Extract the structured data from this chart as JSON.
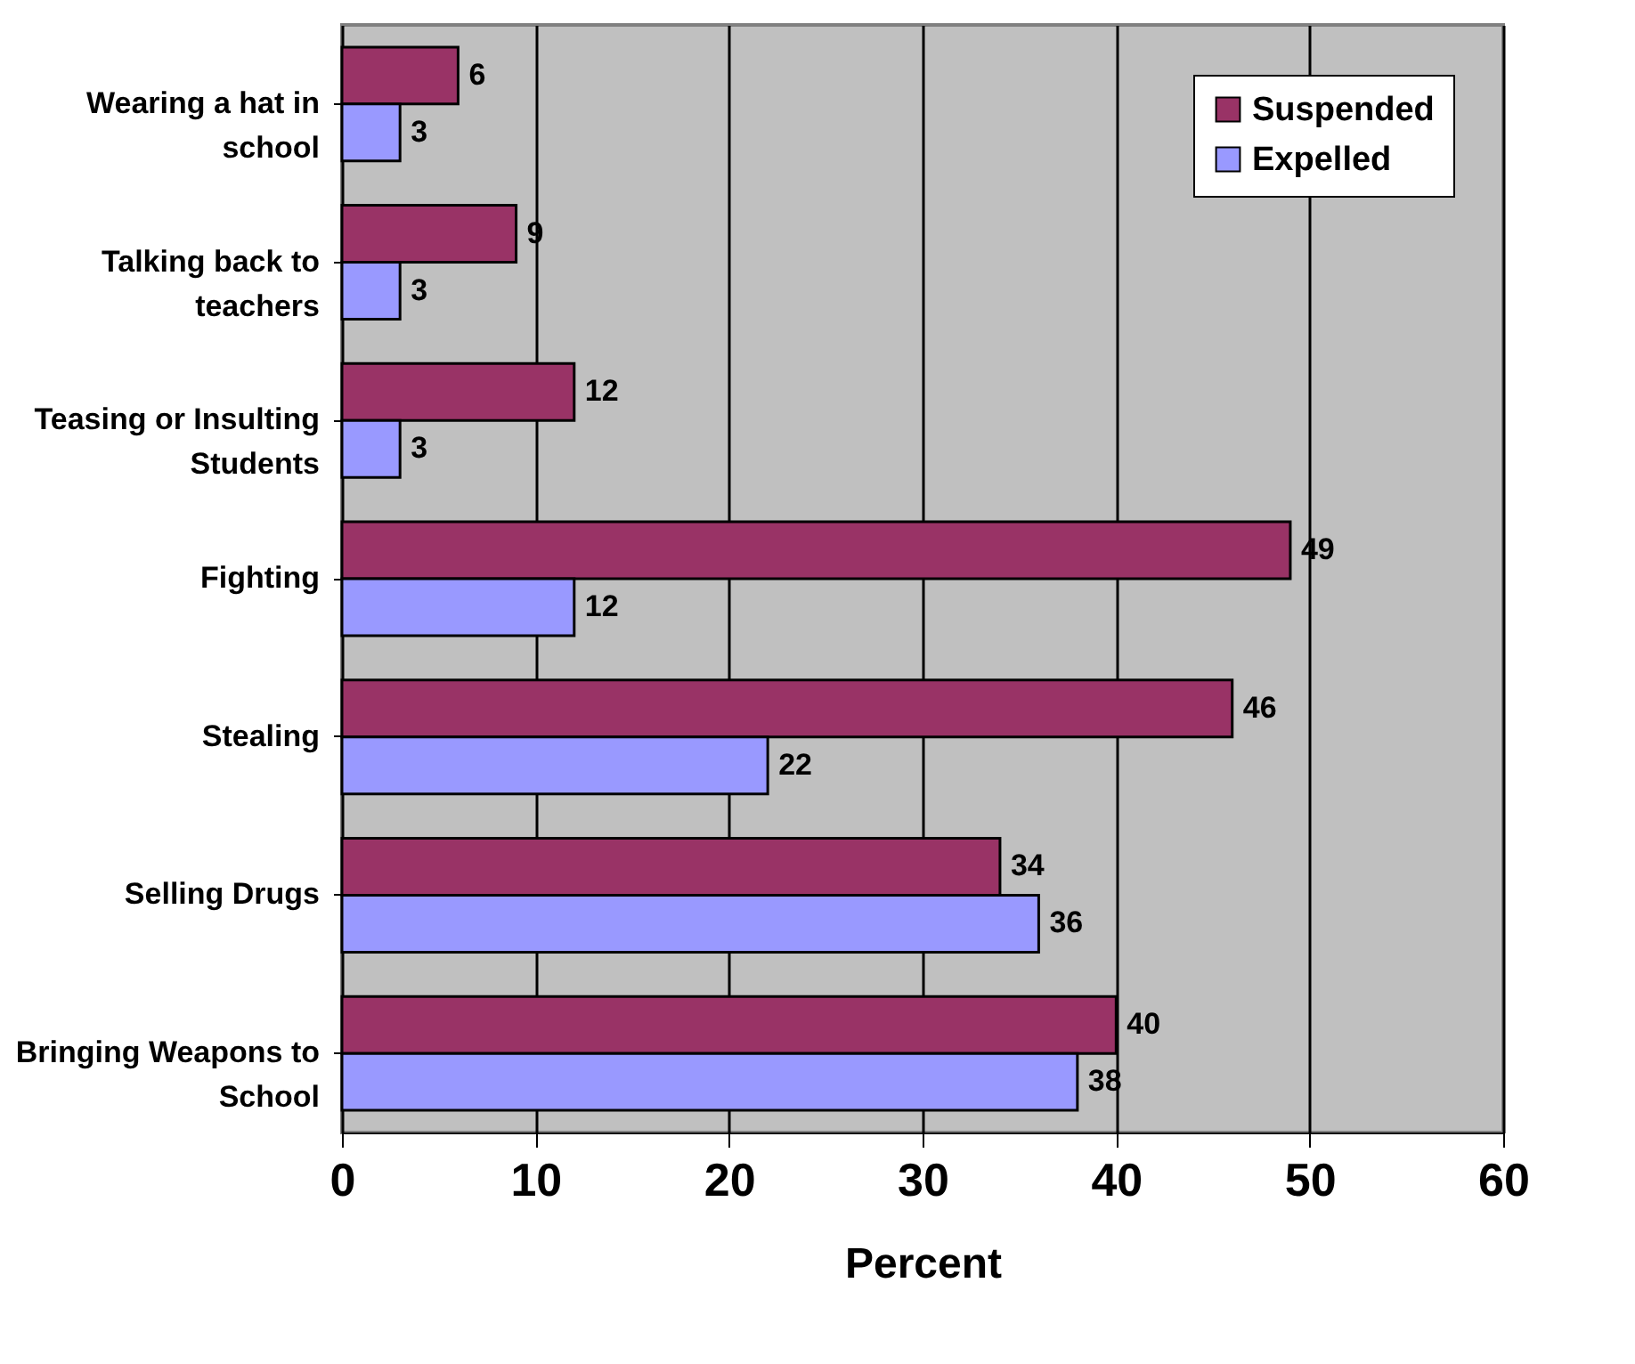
{
  "chart_data": {
    "type": "bar",
    "orientation": "horizontal",
    "xlabel": "Percent",
    "categories": [
      "Wearing a hat in school",
      "Talking back to teachers",
      "Teasing or Insulting Students",
      "Fighting",
      "Stealing",
      "Selling Drugs",
      "Bringing Weapons to School"
    ],
    "series": [
      {
        "name": "Suspended",
        "color": "#993366",
        "values": [
          6,
          9,
          12,
          49,
          46,
          34,
          40
        ]
      },
      {
        "name": "Expelled",
        "color": "#9999ff",
        "values": [
          3,
          3,
          3,
          12,
          22,
          36,
          38
        ]
      }
    ],
    "xlim": [
      0,
      60
    ],
    "xticks": [
      0,
      10,
      20,
      30,
      40,
      50,
      60
    ],
    "grid": "x",
    "legend": "top right",
    "data_labels": true
  }
}
